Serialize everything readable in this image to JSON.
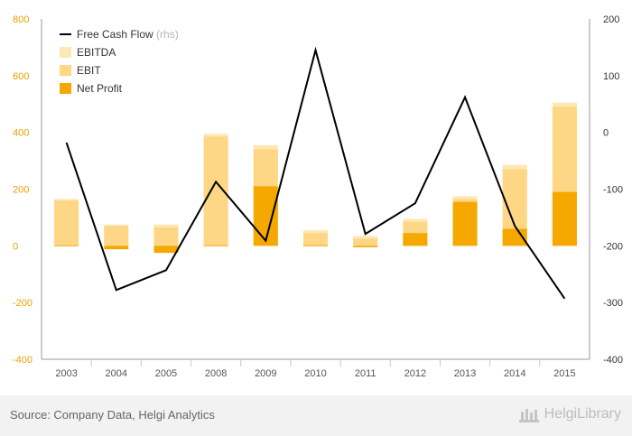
{
  "chart_data": {
    "type": "bar",
    "categories": [
      "2003",
      "2004",
      "2005",
      "2008",
      "2009",
      "2010",
      "2011",
      "2012",
      "2013",
      "2014",
      "2015"
    ],
    "series": [
      {
        "name": "EBITDA",
        "type": "bar",
        "axis": "left",
        "color": "#fde7b3",
        "values": [
          165,
          75,
          75,
          395,
          355,
          55,
          35,
          95,
          175,
          285,
          505
        ]
      },
      {
        "name": "EBIT",
        "type": "bar",
        "axis": "left",
        "color": "#fdd785",
        "values": [
          160,
          70,
          65,
          385,
          340,
          45,
          25,
          85,
          165,
          270,
          490
        ]
      },
      {
        "name": "Net Profit",
        "type": "bar",
        "axis": "left",
        "color": "#f5a800",
        "values": [
          2,
          -12,
          -25,
          2,
          210,
          2,
          -5,
          45,
          155,
          60,
          190
        ]
      },
      {
        "name": "Free Cash Flow",
        "name_suffix": "(rhs)",
        "type": "line",
        "axis": "right",
        "color": "#000000",
        "values": [
          -18,
          -278,
          -243,
          -87,
          -191,
          145,
          -179,
          -125,
          62,
          -165,
          -293
        ]
      }
    ],
    "y_left": {
      "range": [
        -400,
        800
      ],
      "ticks": [
        800,
        600,
        400,
        200,
        0,
        -200,
        -400
      ],
      "color": "#e8a200"
    },
    "y_right": {
      "range": [
        -400,
        200
      ],
      "ticks": [
        200,
        100,
        0,
        -100,
        -200,
        -300,
        -400
      ]
    },
    "grid": false,
    "legend": {
      "placement": "top-left",
      "order": [
        "Free Cash Flow",
        "EBITDA",
        "EBIT",
        "Net Profit"
      ]
    }
  },
  "footer": {
    "source": "Source: Company Data, Helgi Analytics",
    "brand": "HelgiLibrary"
  }
}
